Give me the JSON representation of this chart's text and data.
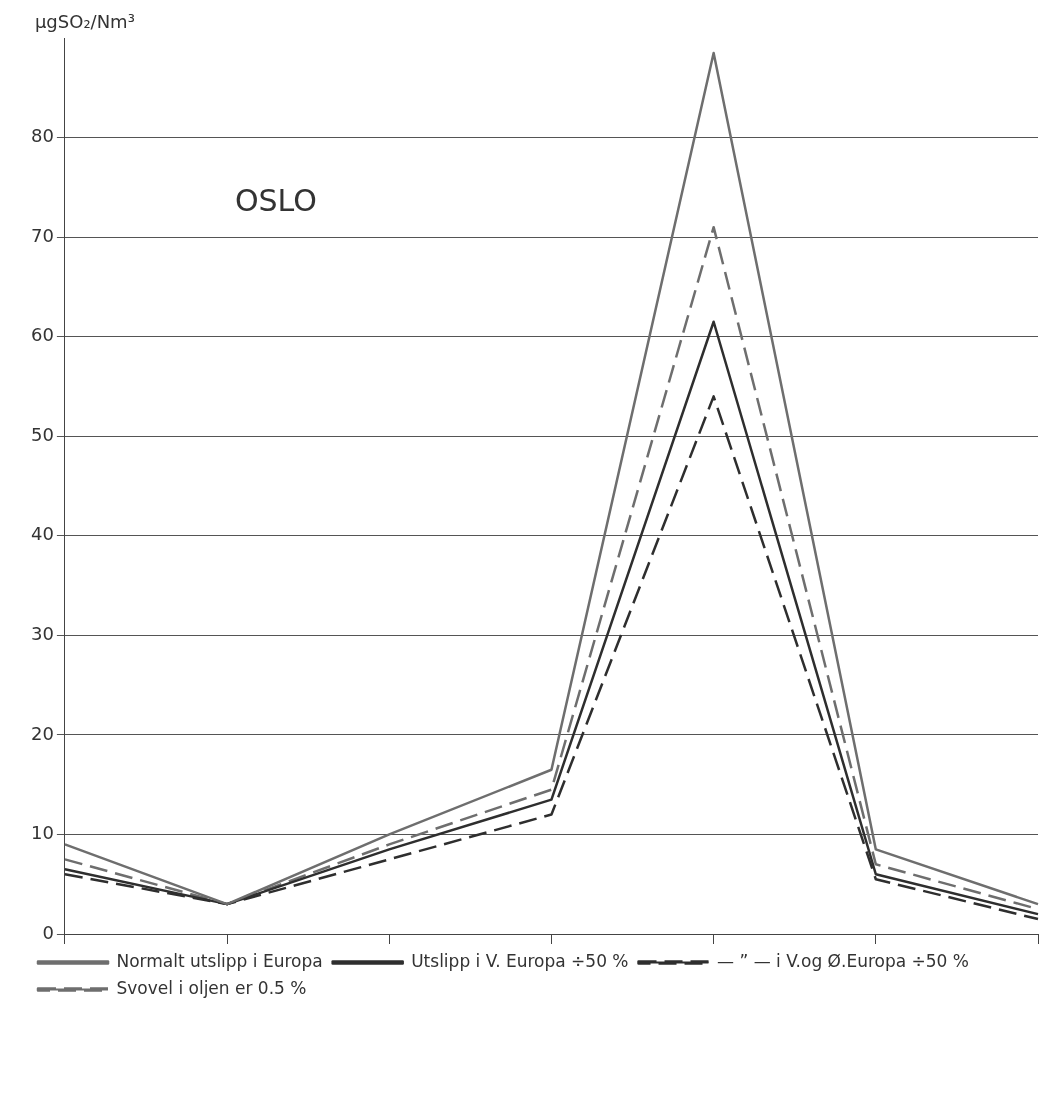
{
  "chart_data": {
    "type": "line",
    "title": "OSLO",
    "ylabel": "μgSO₂/Nm³",
    "categories": [
      null,
      null,
      null,
      null,
      null,
      null,
      null
    ],
    "series": [
      {
        "name": "Normalt utslipp i Europa",
        "color": "#6e6e6e",
        "line_style": "solid",
        "values": [
          9,
          3,
          10,
          16.5,
          88.5,
          8.5,
          3
        ]
      },
      {
        "name": "Utslipp i V. Europa ÷50 %",
        "color": "#2e2e2e",
        "line_style": "solid",
        "values": [
          6.5,
          3,
          8.5,
          13.5,
          61.5,
          6,
          2
        ]
      },
      {
        "name": "— ” — i V.og Ø.Europa ÷50 %",
        "color": "#2e2e2e",
        "line_style": "dashed",
        "values": [
          6,
          3,
          7.5,
          12,
          54,
          5.5,
          1.5
        ]
      },
      {
        "name": "Svovel i oljen er 0.5 %",
        "color": "#6e6e6e",
        "line_style": "dashed",
        "values": [
          7.5,
          3,
          9,
          14.5,
          71,
          7,
          2.5
        ]
      }
    ],
    "ylim": [
      0,
      90
    ],
    "yticks": [
      0,
      10,
      20,
      30,
      40,
      50,
      60,
      70,
      80
    ],
    "grid": "y",
    "legend": "bottom",
    "tick_labels": "y",
    "marker": "none"
  }
}
